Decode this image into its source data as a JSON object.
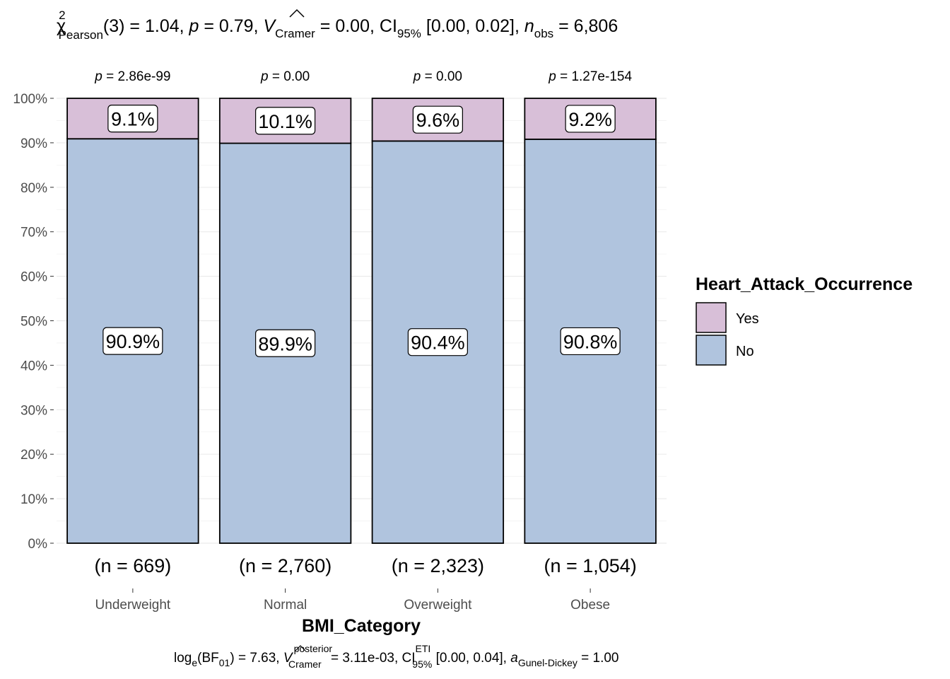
{
  "chart_data": {
    "type": "bar",
    "stacked": true,
    "percent": true,
    "title_parts": {
      "chi": "χ",
      "sup2": "2",
      "pearson": "Pearson",
      "df": "(3) = 1.04, ",
      "p": "p",
      "p_val": " = 0.79, ",
      "v": "V",
      "cramer": "Cramer",
      "v_val": " = 0.00, CI",
      "ci_sub": "95%",
      "ci_val": " [0.00, 0.02], ",
      "n": "n",
      "n_sub": "obs",
      "n_val": " = 6,806"
    },
    "subtitle_parts": {
      "log": "log",
      "e": "e",
      "bf": "(BF",
      "bf_sub": "01",
      "bf_val": ") = 7.63, ",
      "v": "V",
      "v_sup": "posterior",
      "v_sub": "Cramer",
      "v_val": " = 3.11e-03, CI",
      "ci_sup": "ETI",
      "ci_sub": "95%",
      "ci_val": " [0.00, 0.04], ",
      "a": "a",
      "a_sub": "Gunel-Dickey",
      "a_val": " = 1.00"
    },
    "xlabel": "BMI_Category",
    "categories": [
      "Underweight",
      "Normal",
      "Overweight",
      "Obese"
    ],
    "counts_labels": [
      "(n = 669)",
      "(n = 2,760)",
      "(n = 2,323)",
      "(n = 1,054)"
    ],
    "p_labels": [
      " = 2.86e-99",
      " = 0.00",
      " = 0.00",
      " = 1.27e-154"
    ],
    "p_symbol": "p",
    "series": [
      {
        "name": "No",
        "values": [
          90.9,
          89.9,
          90.4,
          90.8
        ],
        "labels": [
          "90.9%",
          "89.9%",
          "90.4%",
          "90.8%"
        ],
        "color": "#B0C4DE"
      },
      {
        "name": "Yes",
        "values": [
          9.1,
          10.1,
          9.6,
          9.2
        ],
        "labels": [
          "9.1%",
          "10.1%",
          "9.6%",
          "9.2%"
        ],
        "color": "#D8BFD8"
      }
    ],
    "yticks": [
      0,
      10,
      20,
      30,
      40,
      50,
      60,
      70,
      80,
      90,
      100
    ],
    "ytick_labels": [
      "0%",
      "10%",
      "20%",
      "30%",
      "40%",
      "50%",
      "60%",
      "70%",
      "80%",
      "90%",
      "100%"
    ],
    "ylim": [
      0,
      100
    ],
    "legend": {
      "title": "Heart_Attack_Occurrence",
      "entries": [
        {
          "label": "Yes",
          "color": "#D8BFD8"
        },
        {
          "label": "No",
          "color": "#B0C4DE"
        }
      ],
      "position": "right"
    },
    "grid": true
  }
}
